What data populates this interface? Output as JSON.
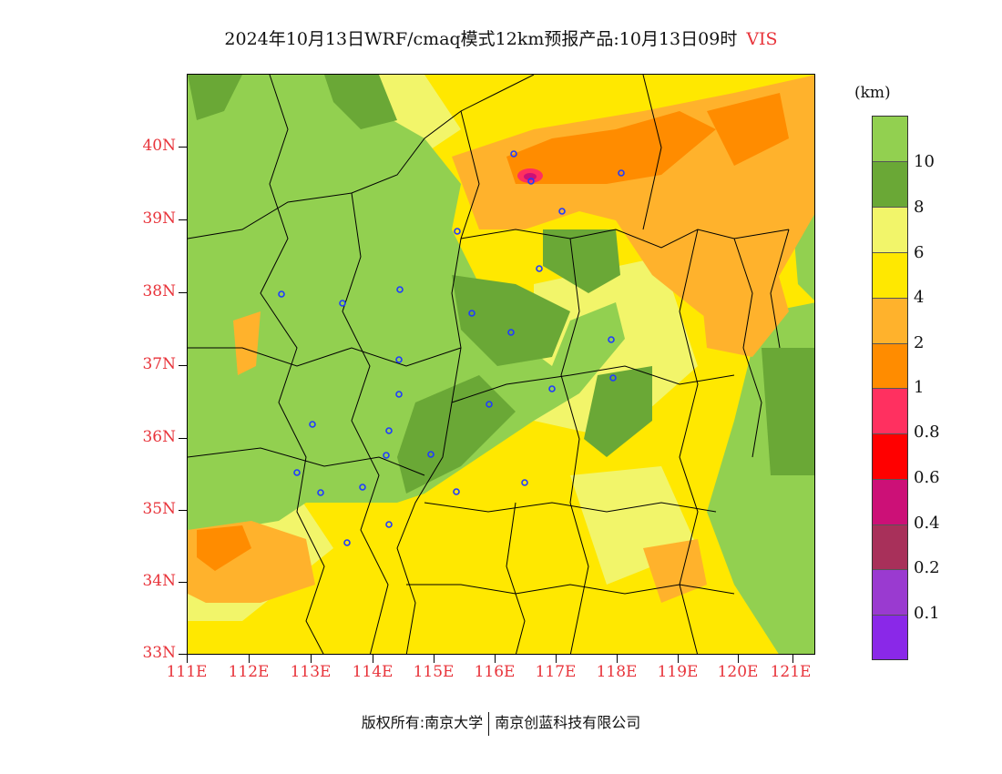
{
  "title": {
    "main": "2024年10月13日WRF/cmaq模式12km预报产品:10月13日09时",
    "variable": "VIS"
  },
  "map": {
    "lat_labels": [
      "40N",
      "39N",
      "38N",
      "37N",
      "36N",
      "35N",
      "34N",
      "33N"
    ],
    "lon_labels": [
      "111E",
      "112E",
      "113E",
      "114E",
      "115E",
      "116E",
      "117E",
      "118E",
      "119E",
      "120E",
      "121E"
    ],
    "label_color": "#e8333a"
  },
  "legend": {
    "unit": "(km)",
    "colors": [
      "#92d050",
      "#6aa836",
      "#f2f56a",
      "#ffe800",
      "#ffb22c",
      "#ff8c00",
      "#ff3060",
      "#ff0000",
      "#cc1077",
      "#a8305a",
      "#9a3ad0",
      "#8a28e8"
    ],
    "labels": [
      "10",
      "8",
      "6",
      "4",
      "2",
      "1",
      "0.8",
      "0.6",
      "0.4",
      "0.2",
      "0.1"
    ]
  },
  "copyright": {
    "owner": "版权所有:南京大学",
    "company": "南京创蓝科技有限公司"
  }
}
